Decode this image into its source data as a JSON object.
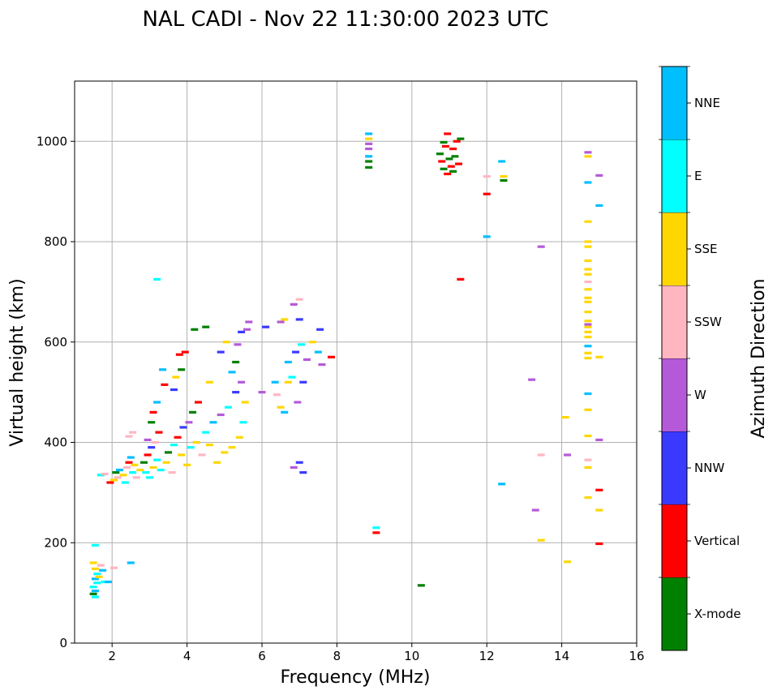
{
  "chart_data": {
    "type": "scatter",
    "title": "NAL CADI - Nov 22 11:30:00 2023 UTC",
    "xlabel": "Frequency (MHz)",
    "ylabel": "Virtual height (km)",
    "xlim": [
      1,
      16
    ],
    "ylim": [
      0,
      1120
    ],
    "xticks": [
      2,
      4,
      6,
      8,
      10,
      12,
      14,
      16
    ],
    "yticks": [
      0,
      200,
      400,
      600,
      800,
      1000
    ],
    "grid": true,
    "colorbar": {
      "title": "Azimuth Direction",
      "categories": [
        {
          "name": "X-mode",
          "color": "#008000"
        },
        {
          "name": "Vertical",
          "color": "#ff0000"
        },
        {
          "name": "NNW",
          "color": "#3a3aff"
        },
        {
          "name": "W",
          "color": "#b45ad8"
        },
        {
          "name": "SSW",
          "color": "#ffb6c1"
        },
        {
          "name": "SSE",
          "color": "#ffd700"
        },
        {
          "name": "E",
          "color": "#00ffff"
        },
        {
          "name": "NNE",
          "color": "#00bfff"
        }
      ]
    },
    "points": [
      [
        1.55,
        195,
        "E"
      ],
      [
        1.5,
        160,
        "SSE"
      ],
      [
        1.55,
        148,
        "SSE"
      ],
      [
        1.6,
        138,
        "E"
      ],
      [
        1.55,
        128,
        "NNE"
      ],
      [
        1.6,
        120,
        "E"
      ],
      [
        1.5,
        112,
        "E"
      ],
      [
        1.55,
        104,
        "NNE"
      ],
      [
        1.5,
        98,
        "X-mode"
      ],
      [
        1.55,
        92,
        "E"
      ],
      [
        1.65,
        132,
        "SSE"
      ],
      [
        1.75,
        145,
        "NNE"
      ],
      [
        1.8,
        122,
        "E"
      ],
      [
        1.9,
        122,
        "NNE"
      ],
      [
        1.7,
        155,
        "SSW"
      ],
      [
        2.05,
        150,
        "SSW"
      ],
      [
        2.5,
        160,
        "NNE"
      ],
      [
        1.7,
        335,
        "E"
      ],
      [
        1.8,
        337,
        "SSW"
      ],
      [
        1.95,
        320,
        "Vertical"
      ],
      [
        2.05,
        325,
        "SSE"
      ],
      [
        2.1,
        340,
        "X-mode"
      ],
      [
        2.15,
        330,
        "SSW"
      ],
      [
        2.2,
        345,
        "NNE"
      ],
      [
        2.3,
        335,
        "SSE"
      ],
      [
        2.35,
        320,
        "E"
      ],
      [
        2.4,
        350,
        "SSW"
      ],
      [
        2.45,
        360,
        "Vertical"
      ],
      [
        2.55,
        340,
        "E"
      ],
      [
        2.6,
        355,
        "SSE"
      ],
      [
        2.5,
        370,
        "NNE"
      ],
      [
        2.65,
        330,
        "SSW"
      ],
      [
        2.75,
        345,
        "SSE"
      ],
      [
        2.85,
        360,
        "X-mode"
      ],
      [
        2.9,
        340,
        "E"
      ],
      [
        2.95,
        375,
        "Vertical"
      ],
      [
        3.0,
        330,
        "E"
      ],
      [
        3.05,
        390,
        "NNW"
      ],
      [
        3.1,
        350,
        "SSE"
      ],
      [
        3.15,
        400,
        "SSW"
      ],
      [
        3.2,
        365,
        "E"
      ],
      [
        3.25,
        420,
        "Vertical"
      ],
      [
        2.95,
        405,
        "W"
      ],
      [
        3.05,
        440,
        "X-mode"
      ],
      [
        3.1,
        460,
        "Vertical"
      ],
      [
        3.2,
        480,
        "NNE"
      ],
      [
        3.3,
        345,
        "E"
      ],
      [
        3.45,
        360,
        "SSE"
      ],
      [
        3.5,
        380,
        "X-mode"
      ],
      [
        3.6,
        340,
        "SSW"
      ],
      [
        3.65,
        395,
        "E"
      ],
      [
        3.75,
        410,
        "Vertical"
      ],
      [
        3.85,
        375,
        "SSE"
      ],
      [
        3.9,
        430,
        "NNW"
      ],
      [
        4.0,
        355,
        "SSE"
      ],
      [
        4.05,
        440,
        "W"
      ],
      [
        4.1,
        390,
        "E"
      ],
      [
        4.15,
        460,
        "X-mode"
      ],
      [
        4.25,
        400,
        "SSE"
      ],
      [
        4.3,
        480,
        "Vertical"
      ],
      [
        4.4,
        375,
        "SSW"
      ],
      [
        4.5,
        420,
        "E"
      ],
      [
        4.6,
        395,
        "SSE"
      ],
      [
        4.7,
        440,
        "NNE"
      ],
      [
        4.8,
        360,
        "SSE"
      ],
      [
        4.9,
        455,
        "W"
      ],
      [
        5.0,
        380,
        "SSE"
      ],
      [
        5.1,
        470,
        "E"
      ],
      [
        5.2,
        390,
        "SSE"
      ],
      [
        5.3,
        500,
        "NNW"
      ],
      [
        5.4,
        410,
        "SSE"
      ],
      [
        5.45,
        520,
        "W"
      ],
      [
        5.5,
        440,
        "E"
      ],
      [
        5.55,
        480,
        "SSE"
      ],
      [
        5.3,
        560,
        "X-mode"
      ],
      [
        5.2,
        540,
        "NNE"
      ],
      [
        5.35,
        595,
        "W"
      ],
      [
        5.45,
        620,
        "NNW"
      ],
      [
        5.6,
        625,
        "W"
      ],
      [
        5.65,
        640,
        "W"
      ],
      [
        5.05,
        600,
        "SSE"
      ],
      [
        4.9,
        580,
        "NNW"
      ],
      [
        4.6,
        520,
        "SSE"
      ],
      [
        4.5,
        630,
        "X-mode"
      ],
      [
        4.2,
        625,
        "X-mode"
      ],
      [
        3.95,
        580,
        "Vertical"
      ],
      [
        3.8,
        575,
        "Vertical"
      ],
      [
        3.85,
        545,
        "X-mode"
      ],
      [
        3.7,
        530,
        "SSE"
      ],
      [
        3.4,
        515,
        "Vertical"
      ],
      [
        3.65,
        505,
        "NNW"
      ],
      [
        3.35,
        545,
        "NNE"
      ],
      [
        3.2,
        725,
        "E"
      ],
      [
        2.55,
        420,
        "SSW"
      ],
      [
        2.45,
        412,
        "SSW"
      ],
      [
        6.1,
        630,
        "NNW"
      ],
      [
        6.0,
        500,
        "W"
      ],
      [
        6.35,
        520,
        "NNE"
      ],
      [
        6.4,
        495,
        "SSW"
      ],
      [
        6.5,
        640,
        "W"
      ],
      [
        6.6,
        645,
        "SSE"
      ],
      [
        6.7,
        560,
        "NNE"
      ],
      [
        6.8,
        530,
        "E"
      ],
      [
        6.85,
        675,
        "W"
      ],
      [
        6.9,
        580,
        "NNW"
      ],
      [
        7.0,
        685,
        "SSW"
      ],
      [
        7.05,
        595,
        "E"
      ],
      [
        7.1,
        520,
        "NNW"
      ],
      [
        7.2,
        565,
        "W"
      ],
      [
        7.35,
        600,
        "SSE"
      ],
      [
        7.5,
        580,
        "NNE"
      ],
      [
        7.55,
        625,
        "NNW"
      ],
      [
        7.6,
        555,
        "W"
      ],
      [
        7.85,
        570,
        "Vertical"
      ],
      [
        6.85,
        350,
        "W"
      ],
      [
        7.0,
        360,
        "NNW"
      ],
      [
        7.1,
        340,
        "NNW"
      ],
      [
        6.95,
        480,
        "W"
      ],
      [
        6.7,
        520,
        "SSE"
      ],
      [
        6.6,
        460,
        "NNE"
      ],
      [
        6.5,
        470,
        "SSE"
      ],
      [
        7.0,
        645,
        "NNW"
      ],
      [
        8.85,
        1015,
        "NNE"
      ],
      [
        8.85,
        1005,
        "SSE"
      ],
      [
        8.85,
        995,
        "W"
      ],
      [
        8.85,
        985,
        "W"
      ],
      [
        8.85,
        970,
        "NNE"
      ],
      [
        8.85,
        960,
        "X-mode"
      ],
      [
        8.85,
        948,
        "X-mode"
      ],
      [
        9.05,
        230,
        "E"
      ],
      [
        9.05,
        220,
        "Vertical"
      ],
      [
        10.25,
        115,
        "X-mode"
      ],
      [
        10.75,
        975,
        "X-mode"
      ],
      [
        10.8,
        960,
        "Vertical"
      ],
      [
        10.85,
        945,
        "X-mode"
      ],
      [
        10.9,
        990,
        "Vertical"
      ],
      [
        10.95,
        1015,
        "Vertical"
      ],
      [
        11.0,
        965,
        "X-mode"
      ],
      [
        11.05,
        950,
        "Vertical"
      ],
      [
        11.1,
        985,
        "Vertical"
      ],
      [
        11.15,
        970,
        "X-mode"
      ],
      [
        11.2,
        1000,
        "Vertical"
      ],
      [
        11.25,
        955,
        "Vertical"
      ],
      [
        11.3,
        1005,
        "X-mode"
      ],
      [
        10.95,
        935,
        "Vertical"
      ],
      [
        11.1,
        940,
        "X-mode"
      ],
      [
        10.85,
        998,
        "X-mode"
      ],
      [
        11.3,
        725,
        "Vertical"
      ],
      [
        12.0,
        930,
        "SSW"
      ],
      [
        12.0,
        895,
        "Vertical"
      ],
      [
        12.0,
        810,
        "NNE"
      ],
      [
        12.4,
        960,
        "NNE"
      ],
      [
        12.45,
        930,
        "SSE"
      ],
      [
        12.45,
        922,
        "X-mode"
      ],
      [
        12.4,
        317,
        "NNE"
      ],
      [
        13.2,
        525,
        "W"
      ],
      [
        13.3,
        265,
        "W"
      ],
      [
        13.45,
        790,
        "W"
      ],
      [
        13.45,
        375,
        "SSW"
      ],
      [
        13.45,
        205,
        "SSE"
      ],
      [
        14.1,
        450,
        "SSE"
      ],
      [
        14.15,
        375,
        "W"
      ],
      [
        14.15,
        162,
        "SSE"
      ],
      [
        14.7,
        978,
        "W"
      ],
      [
        14.7,
        970,
        "SSE"
      ],
      [
        14.7,
        918,
        "NNE"
      ],
      [
        14.7,
        840,
        "SSE"
      ],
      [
        14.7,
        800,
        "SSE"
      ],
      [
        14.7,
        790,
        "SSE"
      ],
      [
        14.7,
        762,
        "SSE"
      ],
      [
        14.7,
        745,
        "SSE"
      ],
      [
        14.7,
        735,
        "SSE"
      ],
      [
        14.7,
        720,
        "SSW"
      ],
      [
        14.7,
        705,
        "SSE"
      ],
      [
        14.7,
        688,
        "SSE"
      ],
      [
        14.7,
        680,
        "SSE"
      ],
      [
        14.7,
        660,
        "SSE"
      ],
      [
        14.7,
        642,
        "SSE"
      ],
      [
        14.7,
        635,
        "W"
      ],
      [
        14.7,
        620,
        "SSE"
      ],
      [
        14.7,
        610,
        "SSE"
      ],
      [
        14.7,
        592,
        "NNE"
      ],
      [
        14.7,
        578,
        "SSE"
      ],
      [
        14.7,
        568,
        "SSE"
      ],
      [
        14.7,
        497,
        "NNE"
      ],
      [
        14.7,
        465,
        "SSE"
      ],
      [
        14.7,
        413,
        "SSE"
      ],
      [
        14.7,
        365,
        "SSW"
      ],
      [
        14.7,
        350,
        "SSE"
      ],
      [
        14.7,
        290,
        "SSE"
      ],
      [
        14.7,
        630,
        "SSE"
      ],
      [
        15.0,
        932,
        "W"
      ],
      [
        15.0,
        872,
        "NNE"
      ],
      [
        15.0,
        570,
        "SSE"
      ],
      [
        15.0,
        405,
        "W"
      ],
      [
        15.0,
        305,
        "Vertical"
      ],
      [
        15.0,
        265,
        "SSE"
      ],
      [
        15.0,
        198,
        "Vertical"
      ]
    ]
  }
}
